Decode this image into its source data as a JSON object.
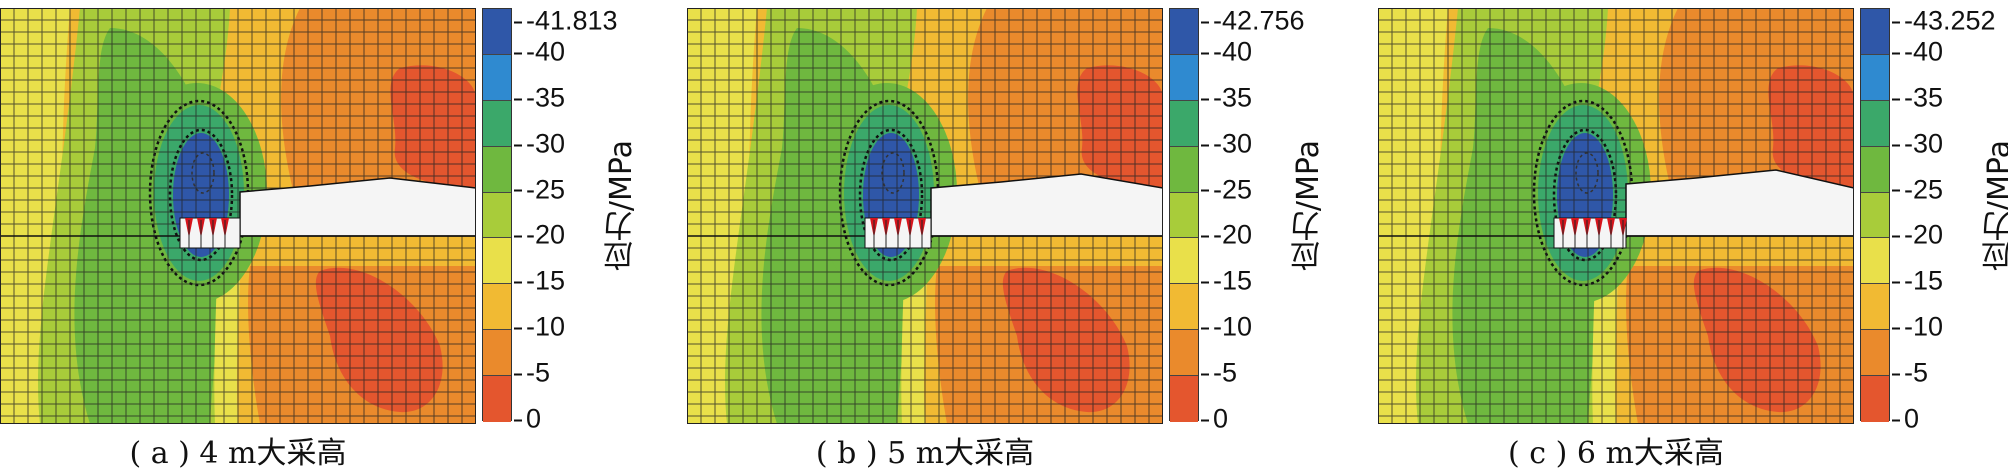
{
  "colorbar_colors": [
    "#2f57a8",
    "#2f8ad0",
    "#3ba86a",
    "#6fb83f",
    "#a8cc3a",
    "#e9e04a",
    "#f1ba33",
    "#ea8a2c",
    "#e4562e"
  ],
  "colorbar_ticks": [
    "-40",
    "-35",
    "-30",
    "-25",
    "-20",
    "-15",
    "-10",
    "-5",
    "0"
  ],
  "unit_label": "应力/MPa",
  "panels": [
    {
      "id": "a",
      "caption": "( a ) 4 m大采高",
      "max_label": "-41.813",
      "spikes": 4
    },
    {
      "id": "b",
      "caption": "( b ) 5 m大采高",
      "max_label": "-42.756",
      "spikes": 5
    },
    {
      "id": "c",
      "caption": "( c ) 6 m大采高",
      "max_label": "-43.252",
      "spikes": 6
    }
  ]
}
